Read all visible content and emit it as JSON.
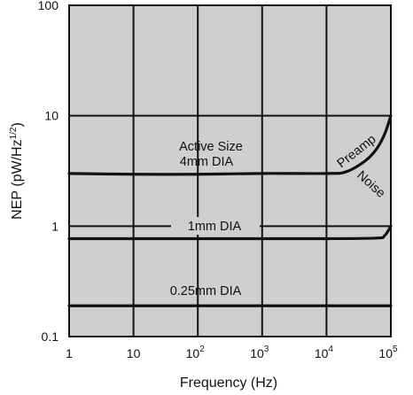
{
  "chart_data": {
    "type": "line",
    "xlabel": "Frequency (Hz)",
    "ylabel_main": "NEP (pW/Hz",
    "ylabel_exp": "1/2",
    "ylabel_close": ")",
    "x_scale": "log",
    "y_scale": "log",
    "xlim": [
      1,
      100000
    ],
    "ylim": [
      0.1,
      100
    ],
    "grid": true,
    "background_color": "#cfcfcf",
    "line_color": "#111111",
    "x_ticks": [
      {
        "value": 1,
        "label": "1",
        "exp": ""
      },
      {
        "value": 10,
        "label": "10",
        "exp": ""
      },
      {
        "value": 100,
        "label": "10",
        "exp": "2"
      },
      {
        "value": 1000,
        "label": "10",
        "exp": "3"
      },
      {
        "value": 10000,
        "label": "10",
        "exp": "4"
      },
      {
        "value": 100000,
        "label": "10",
        "exp": "5"
      }
    ],
    "y_ticks": [
      {
        "value": 0.1,
        "label": "0.1"
      },
      {
        "value": 1,
        "label": "1"
      },
      {
        "value": 10,
        "label": "10"
      },
      {
        "value": 100,
        "label": "100"
      }
    ],
    "series": [
      {
        "name": "Active Size 4mm DIA",
        "x": [
          1,
          10,
          100,
          1000,
          10000,
          20000,
          40000,
          60000,
          80000,
          100000
        ],
        "y": [
          3.0,
          2.95,
          2.95,
          3.0,
          3.0,
          3.1,
          3.9,
          5.0,
          6.8,
          10.0
        ]
      },
      {
        "name": "1mm DIA",
        "x": [
          1,
          10,
          100,
          1000,
          10000,
          60000,
          80000,
          100000
        ],
        "y": [
          0.77,
          0.77,
          0.77,
          0.77,
          0.77,
          0.78,
          0.82,
          1.0
        ]
      },
      {
        "name": "0.25mm DIA",
        "x": [
          1,
          10,
          100,
          1000,
          10000,
          100000
        ],
        "y": [
          0.19,
          0.19,
          0.19,
          0.19,
          0.19,
          0.19
        ]
      }
    ],
    "annotations": {
      "active_size_line1": "Active Size",
      "active_size_line2": "4mm DIA",
      "mm1_label": "1mm DIA",
      "mm025_label": "0.25mm DIA",
      "preamp": "Preamp",
      "noise": "Noise"
    }
  }
}
